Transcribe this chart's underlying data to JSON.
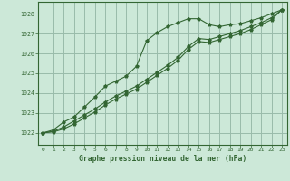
{
  "title": "Graphe pression niveau de la mer (hPa)",
  "bg_color": "#cce8d8",
  "grid_color": "#99bbaa",
  "line_color": "#336633",
  "x_ticks": [
    0,
    1,
    2,
    3,
    4,
    5,
    6,
    7,
    8,
    9,
    10,
    11,
    12,
    13,
    14,
    15,
    16,
    17,
    18,
    19,
    20,
    21,
    22,
    23
  ],
  "y_ticks": [
    1022,
    1023,
    1024,
    1025,
    1026,
    1027,
    1028
  ],
  "ylim": [
    1021.4,
    1028.6
  ],
  "xlim": [
    -0.5,
    23.5
  ],
  "line1_x": [
    0,
    1,
    2,
    3,
    4,
    5,
    6,
    7,
    8,
    9,
    10,
    11,
    12,
    13,
    14,
    15,
    16,
    17,
    18,
    19,
    20,
    21,
    22,
    23
  ],
  "line1_y": [
    1022.0,
    1022.15,
    1022.55,
    1022.8,
    1023.3,
    1023.8,
    1024.35,
    1024.6,
    1024.85,
    1025.35,
    1026.65,
    1027.05,
    1027.35,
    1027.55,
    1027.75,
    1027.75,
    1027.45,
    1027.35,
    1027.45,
    1027.5,
    1027.65,
    1027.8,
    1028.0,
    1028.2
  ],
  "line2_x": [
    0,
    1,
    2,
    3,
    4,
    5,
    6,
    7,
    8,
    9,
    10,
    11,
    12,
    13,
    14,
    15,
    16,
    17,
    18,
    19,
    20,
    21,
    22,
    23
  ],
  "line2_y": [
    1022.0,
    1022.08,
    1022.3,
    1022.6,
    1022.9,
    1023.2,
    1023.55,
    1023.85,
    1024.1,
    1024.35,
    1024.7,
    1025.05,
    1025.4,
    1025.8,
    1026.35,
    1026.75,
    1026.7,
    1026.85,
    1027.0,
    1027.15,
    1027.35,
    1027.55,
    1027.8,
    1028.2
  ],
  "line3_x": [
    0,
    1,
    2,
    3,
    4,
    5,
    6,
    7,
    8,
    9,
    10,
    11,
    12,
    13,
    14,
    15,
    16,
    17,
    18,
    19,
    20,
    21,
    22,
    23
  ],
  "line3_y": [
    1022.0,
    1022.05,
    1022.2,
    1022.45,
    1022.75,
    1023.05,
    1023.4,
    1023.7,
    1023.95,
    1024.2,
    1024.55,
    1024.9,
    1025.25,
    1025.65,
    1026.2,
    1026.6,
    1026.55,
    1026.7,
    1026.85,
    1027.0,
    1027.2,
    1027.45,
    1027.7,
    1028.2
  ]
}
